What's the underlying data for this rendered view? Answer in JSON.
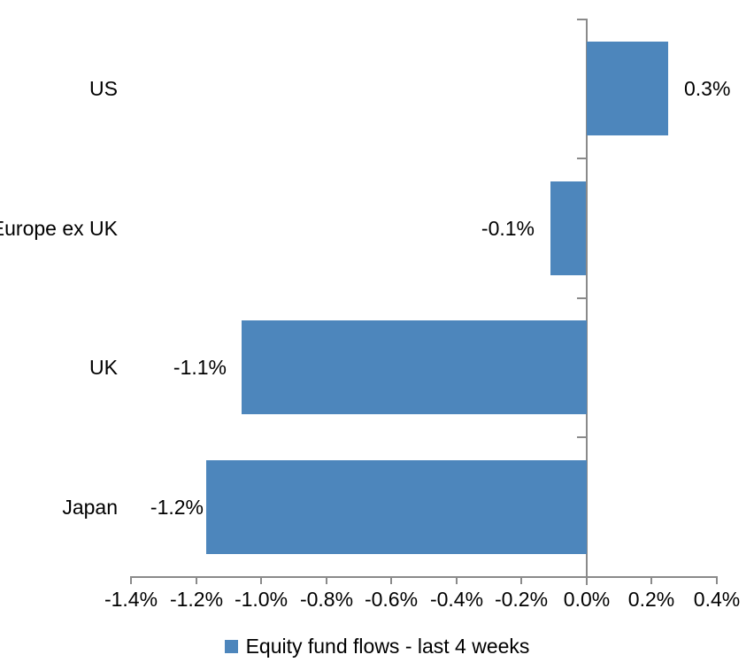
{
  "chart_data": {
    "type": "bar",
    "orientation": "horizontal",
    "title": "",
    "categories": [
      "US",
      "Europe ex UK",
      "UK",
      "Japan"
    ],
    "series": [
      {
        "name": "Equity fund flows - last 4 weeks",
        "values": [
          0.3,
          -0.1,
          -1.1,
          -1.2
        ],
        "data_labels": [
          "0.3%",
          "-0.1%",
          "-1.1%",
          "-1.2%"
        ],
        "bar_extents_pct": [
          0.25,
          -0.11,
          -1.06,
          -1.17
        ]
      }
    ],
    "x_axis": {
      "min": -1.4,
      "max": 0.4,
      "step": 0.2,
      "format": "percent",
      "tick_labels": [
        "-1.4%",
        "-1.2%",
        "-1.0%",
        "-0.8%",
        "-0.6%",
        "-0.4%",
        "-0.2%",
        "0.0%",
        "0.2%",
        "0.4%"
      ]
    },
    "legend": {
      "position": "bottom-center",
      "entries": [
        {
          "label": "Equity fund flows - last 4 weeks",
          "marker": "square"
        }
      ]
    },
    "grid": false,
    "colors": {
      "bar": "#4D86BC",
      "axis": "#8A8A8A",
      "text": "#000000",
      "background": "#FFFFFF"
    }
  }
}
